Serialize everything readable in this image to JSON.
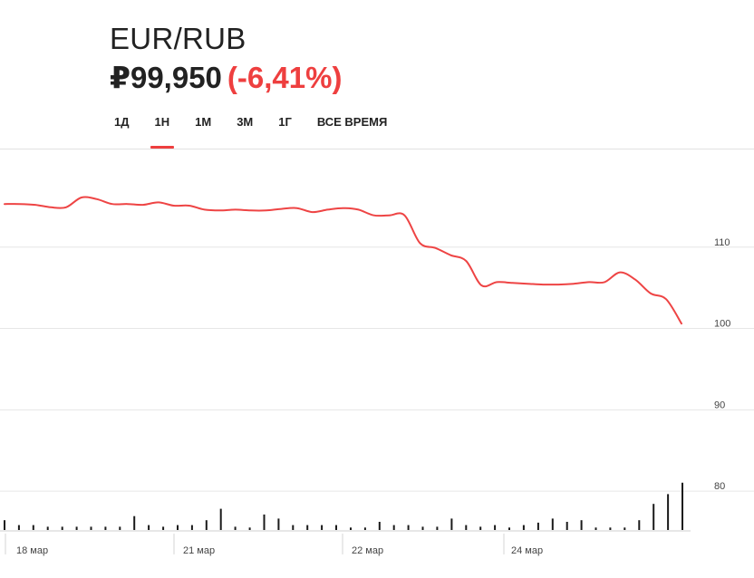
{
  "header": {
    "pair": "EUR/RUB",
    "price": "₽99,950",
    "change": "(-6,41%)",
    "change_color": "#ee3f3f"
  },
  "tabs": [
    {
      "label": "1Д",
      "active": false
    },
    {
      "label": "1Н",
      "active": true
    },
    {
      "label": "1М",
      "active": false
    },
    {
      "label": "3М",
      "active": false
    },
    {
      "label": "1Г",
      "active": false
    },
    {
      "label": "ВСЕ ВРЕМЯ",
      "active": false
    }
  ],
  "chart_data": {
    "type": "line",
    "line_color": "#ee4444",
    "grid": true,
    "ylim": [
      73,
      122
    ],
    "y_ticks": [
      80,
      90,
      100,
      110
    ],
    "x_labels": [
      "18 мар",
      "21 мар",
      "22 мар",
      "24 мар"
    ],
    "series": [
      {
        "values": [
          115.3,
          115.3,
          115.2,
          114.9,
          114.9,
          116.1,
          115.9,
          115.3,
          115.3,
          115.2,
          115.5,
          115.1,
          115.1,
          114.6,
          114.5,
          114.6,
          114.5,
          114.5,
          114.7,
          114.8,
          114.3,
          114.6,
          114.8,
          114.6,
          113.9,
          113.9,
          113.9,
          110.5,
          109.9,
          109.0,
          108.3,
          105.3,
          105.7,
          105.6,
          105.5,
          105.4,
          105.4,
          105.5,
          105.7,
          105.7,
          106.9,
          106.0,
          104.3,
          103.6,
          100.6
        ]
      }
    ],
    "volume": [
      1.2,
      0.6,
      0.6,
      0.4,
      0.4,
      0.4,
      0.4,
      0.4,
      0.4,
      1.7,
      0.6,
      0.4,
      0.6,
      0.6,
      1.2,
      2.6,
      0.4,
      0.3,
      1.9,
      1.4,
      0.6,
      0.6,
      0.6,
      0.6,
      0.3,
      0.3,
      1.0,
      0.6,
      0.6,
      0.4,
      0.4,
      1.4,
      0.6,
      0.4,
      0.6,
      0.3,
      0.6,
      0.9,
      1.4,
      1.0,
      1.2,
      0.3,
      0.3,
      0.3,
      1.2,
      3.2,
      4.4,
      5.8
    ]
  }
}
